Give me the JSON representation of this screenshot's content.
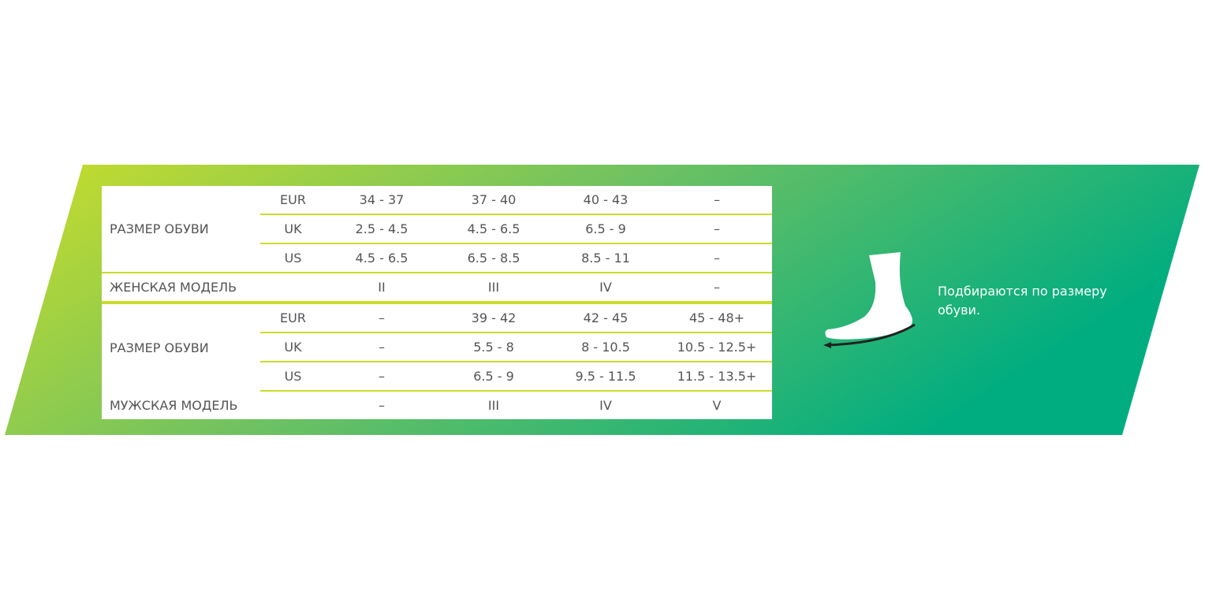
{
  "colors": {
    "gradient_start": "#cadd2a",
    "gradient_end": "#00ad80",
    "line": "#c9dd2c",
    "text": "#555555"
  },
  "women": {
    "size_label": "РАЗМЕР ОБУВИ",
    "rows": [
      {
        "system": "EUR",
        "values": [
          "34 - 37",
          "37 - 40",
          "40 - 43",
          "–"
        ]
      },
      {
        "system": "UK",
        "values": [
          "2.5 - 4.5",
          "4.5 - 6.5",
          "6.5 - 9",
          "–"
        ]
      },
      {
        "system": "US",
        "values": [
          "4.5 - 6.5",
          "6.5 - 8.5",
          "8.5 - 11",
          "–"
        ]
      }
    ],
    "model_label": "ЖЕНСКАЯ МОДЕЛЬ",
    "models": [
      "II",
      "III",
      "IV",
      "–"
    ]
  },
  "men": {
    "size_label": "РАЗМЕР ОБУВИ",
    "rows": [
      {
        "system": "EUR",
        "values": [
          "–",
          "39 - 42",
          "42 - 45",
          "45 - 48+"
        ]
      },
      {
        "system": "UK",
        "values": [
          "–",
          "5.5 - 8",
          "8 - 10.5",
          "10.5 - 12.5+"
        ]
      },
      {
        "system": "US",
        "values": [
          "–",
          "6.5 - 9",
          "9.5 - 11.5",
          "11.5 - 13.5+"
        ]
      }
    ],
    "model_label": "МУЖСКАЯ МОДЕЛЬ",
    "models": [
      "–",
      "III",
      "IV",
      "V"
    ]
  },
  "note": "Подбираются по размеру обуви.",
  "icon": "foot-icon"
}
